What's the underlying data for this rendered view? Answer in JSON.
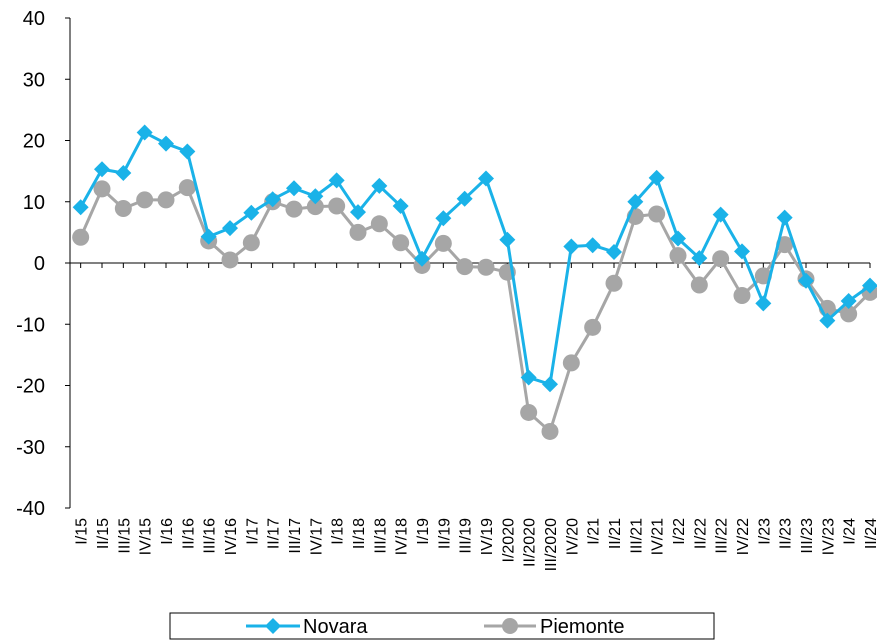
{
  "chart_data": {
    "type": "line",
    "title": "",
    "xlabel": "",
    "ylabel": "",
    "ylim": [
      -40,
      40
    ],
    "yticks": [
      -40,
      -30,
      -20,
      -10,
      0,
      10,
      20,
      30,
      40
    ],
    "grid": false,
    "legend_position": "bottom",
    "categories": [
      "I/15",
      "II/15",
      "III/15",
      "IV/15",
      "I/16",
      "II/16",
      "III/16",
      "IV/16",
      "I/17",
      "II/17",
      "III/17",
      "IV/17",
      "I/18",
      "II/18",
      "III/18",
      "IV/18",
      "I/19",
      "II/19",
      "III/19",
      "IV/19",
      "I/2020",
      "II/2020",
      "III/2020",
      "IV/20",
      "I/21",
      "II/21",
      "III/21",
      "IV/21",
      "I/22",
      "II/22",
      "III/22",
      "IV/22",
      "I/23",
      "II/23",
      "III/23",
      "IV/23",
      "I/24",
      "II/24"
    ],
    "series": [
      {
        "name": "Novara",
        "color": "#1ab2e8",
        "marker": "diamond",
        "values": [
          9.1,
          15.3,
          14.7,
          21.3,
          19.5,
          18.2,
          4.3,
          5.7,
          8.2,
          10.4,
          12.2,
          10.9,
          13.5,
          8.3,
          12.6,
          9.3,
          0.7,
          7.3,
          10.5,
          13.8,
          3.8,
          -18.7,
          -19.8,
          2.7,
          2.9,
          1.8,
          10.0,
          13.9,
          4.0,
          0.8,
          7.9,
          1.9,
          -6.6,
          7.4,
          -2.9,
          -9.4,
          -6.2,
          -3.7
        ]
      },
      {
        "name": "Piemonte",
        "color": "#a6a6a6",
        "marker": "circle",
        "values": [
          4.2,
          12.1,
          8.9,
          10.3,
          10.3,
          12.3,
          3.6,
          0.5,
          3.3,
          10.0,
          8.8,
          9.2,
          9.3,
          5.0,
          6.4,
          3.3,
          -0.4,
          3.2,
          -0.6,
          -0.7,
          -1.5,
          -24.4,
          -27.5,
          -16.3,
          -10.5,
          -3.3,
          7.6,
          8.0,
          1.2,
          -3.6,
          0.7,
          -5.3,
          -2.1,
          3.0,
          -2.6,
          -7.4,
          -8.3,
          -4.8
        ]
      }
    ]
  }
}
